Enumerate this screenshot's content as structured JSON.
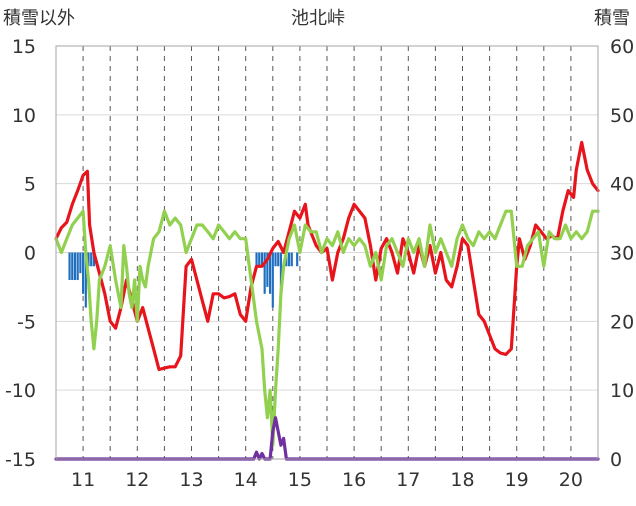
{
  "chart_data": {
    "type": "line",
    "title": "池北峠",
    "ylabel_left": "積雪以外",
    "ylabel_right": "積雪",
    "x_ticks": [
      "11",
      "12",
      "13",
      "14",
      "15",
      "16",
      "17",
      "18",
      "19",
      "20"
    ],
    "x_range": [
      10.5,
      20.5
    ],
    "y_left_ticks": [
      "15",
      "10",
      "5",
      "0",
      "-5",
      "-10",
      "-15"
    ],
    "y_left_range": [
      -15,
      15
    ],
    "y_right_ticks": [
      "60",
      "50",
      "40",
      "30",
      "20",
      "10",
      "0"
    ],
    "y_right_range": [
      0,
      60
    ],
    "grid": {
      "vertical_dashed": true,
      "horizontal_solid": true
    },
    "colors": {
      "red": "#e8141c",
      "green": "#92d050",
      "blue": "#1f6ebf",
      "purple": "#7030a0",
      "grid_h": "#d9d9d9",
      "grid_v": "#595959",
      "frame": "#a6a6a6"
    },
    "series": [
      {
        "color_key": "red",
        "axis": "left",
        "points": [
          [
            10.5,
            1.0
          ],
          [
            10.6,
            1.8
          ],
          [
            10.7,
            2.2
          ],
          [
            10.8,
            3.5
          ],
          [
            10.9,
            4.5
          ],
          [
            11.0,
            5.6
          ],
          [
            11.08,
            5.9
          ],
          [
            11.12,
            2.0
          ],
          [
            11.2,
            0.0
          ],
          [
            11.3,
            -1.5
          ],
          [
            11.4,
            -3.0
          ],
          [
            11.5,
            -5.0
          ],
          [
            11.6,
            -5.5
          ],
          [
            11.7,
            -4.0
          ],
          [
            11.8,
            -2.0
          ],
          [
            11.9,
            -3.5
          ],
          [
            12.0,
            -5.0
          ],
          [
            12.1,
            -4.0
          ],
          [
            12.2,
            -5.5
          ],
          [
            12.3,
            -7.0
          ],
          [
            12.4,
            -8.5
          ],
          [
            12.5,
            -8.4
          ],
          [
            12.6,
            -8.3
          ],
          [
            12.7,
            -8.3
          ],
          [
            12.8,
            -7.5
          ],
          [
            12.9,
            -1.0
          ],
          [
            13.0,
            -0.5
          ],
          [
            13.1,
            -2.0
          ],
          [
            13.2,
            -3.5
          ],
          [
            13.3,
            -5.0
          ],
          [
            13.4,
            -3.0
          ],
          [
            13.5,
            -3.0
          ],
          [
            13.6,
            -3.3
          ],
          [
            13.7,
            -3.2
          ],
          [
            13.8,
            -3.0
          ],
          [
            13.9,
            -4.5
          ],
          [
            14.0,
            -5.0
          ],
          [
            14.1,
            -2.5
          ],
          [
            14.2,
            -1.0
          ],
          [
            14.3,
            -1.0
          ],
          [
            14.4,
            -0.5
          ],
          [
            14.5,
            0.3
          ],
          [
            14.6,
            0.8
          ],
          [
            14.7,
            0.0
          ],
          [
            14.8,
            1.5
          ],
          [
            14.9,
            3.0
          ],
          [
            15.0,
            2.5
          ],
          [
            15.1,
            3.5
          ],
          [
            15.15,
            2.0
          ],
          [
            15.2,
            1.5
          ],
          [
            15.3,
            0.5
          ],
          [
            15.4,
            0.0
          ],
          [
            15.5,
            0.3
          ],
          [
            15.6,
            -2.0
          ],
          [
            15.7,
            0.0
          ],
          [
            15.8,
            1.0
          ],
          [
            15.9,
            2.5
          ],
          [
            16.0,
            3.5
          ],
          [
            16.1,
            3.0
          ],
          [
            16.2,
            2.5
          ],
          [
            16.3,
            0.5
          ],
          [
            16.4,
            -2.0
          ],
          [
            16.5,
            0.3
          ],
          [
            16.6,
            1.0
          ],
          [
            16.7,
            0.0
          ],
          [
            16.8,
            -1.5
          ],
          [
            16.9,
            1.0
          ],
          [
            17.0,
            0.0
          ],
          [
            17.1,
            -1.5
          ],
          [
            17.2,
            0.5
          ],
          [
            17.3,
            -1.0
          ],
          [
            17.4,
            0.5
          ],
          [
            17.5,
            -1.5
          ],
          [
            17.6,
            0.0
          ],
          [
            17.7,
            -2.0
          ],
          [
            17.8,
            -2.5
          ],
          [
            17.9,
            -1.0
          ],
          [
            18.0,
            1.0
          ],
          [
            18.1,
            0.5
          ],
          [
            18.2,
            -2.0
          ],
          [
            18.3,
            -4.5
          ],
          [
            18.4,
            -5.0
          ],
          [
            18.5,
            -6.0
          ],
          [
            18.6,
            -7.0
          ],
          [
            18.7,
            -7.3
          ],
          [
            18.8,
            -7.4
          ],
          [
            18.9,
            -7.0
          ],
          [
            19.0,
            -1.0
          ],
          [
            19.05,
            1.0
          ],
          [
            19.15,
            -0.5
          ],
          [
            19.25,
            0.5
          ],
          [
            19.35,
            2.0
          ],
          [
            19.45,
            1.5
          ],
          [
            19.55,
            1.0
          ],
          [
            19.65,
            1.2
          ],
          [
            19.75,
            1.0
          ],
          [
            19.85,
            3.0
          ],
          [
            19.95,
            4.5
          ],
          [
            20.05,
            4.0
          ],
          [
            20.1,
            6.0
          ],
          [
            20.15,
            7.0
          ],
          [
            20.2,
            8.0
          ],
          [
            20.3,
            6.0
          ],
          [
            20.4,
            5.0
          ],
          [
            20.5,
            4.5
          ]
        ]
      },
      {
        "color_key": "green",
        "axis": "left",
        "points": [
          [
            10.5,
            1.0
          ],
          [
            10.6,
            0.0
          ],
          [
            10.7,
            1.0
          ],
          [
            10.8,
            2.0
          ],
          [
            10.9,
            2.5
          ],
          [
            11.0,
            3.0
          ],
          [
            11.05,
            0.0
          ],
          [
            11.1,
            -2.0
          ],
          [
            11.15,
            -5.0
          ],
          [
            11.2,
            -7.0
          ],
          [
            11.25,
            -5.0
          ],
          [
            11.3,
            -2.0
          ],
          [
            11.4,
            -1.0
          ],
          [
            11.5,
            0.5
          ],
          [
            11.6,
            -2.0
          ],
          [
            11.7,
            -4.0
          ],
          [
            11.75,
            0.5
          ],
          [
            11.8,
            -1.0
          ],
          [
            11.85,
            -3.0
          ],
          [
            11.9,
            -4.0
          ],
          [
            11.95,
            -2.0
          ],
          [
            12.0,
            -5.0
          ],
          [
            12.05,
            -1.0
          ],
          [
            12.1,
            -2.0
          ],
          [
            12.15,
            -2.5
          ],
          [
            12.2,
            -1.0
          ],
          [
            12.3,
            1.0
          ],
          [
            12.4,
            1.5
          ],
          [
            12.5,
            3.0
          ],
          [
            12.6,
            2.0
          ],
          [
            12.7,
            2.5
          ],
          [
            12.8,
            2.0
          ],
          [
            12.9,
            0.0
          ],
          [
            13.0,
            1.0
          ],
          [
            13.1,
            2.0
          ],
          [
            13.2,
            2.0
          ],
          [
            13.3,
            1.5
          ],
          [
            13.4,
            1.0
          ],
          [
            13.5,
            2.0
          ],
          [
            13.6,
            1.5
          ],
          [
            13.7,
            1.0
          ],
          [
            13.8,
            1.5
          ],
          [
            13.9,
            1.0
          ],
          [
            14.0,
            1.0
          ],
          [
            14.1,
            -2.0
          ],
          [
            14.2,
            -5.0
          ],
          [
            14.3,
            -7.0
          ],
          [
            14.35,
            -10.0
          ],
          [
            14.4,
            -12.0
          ],
          [
            14.45,
            -10.0
          ],
          [
            14.5,
            -14.0
          ],
          [
            14.55,
            -10.0
          ],
          [
            14.6,
            -7.0
          ],
          [
            14.65,
            -3.0
          ],
          [
            14.7,
            -1.0
          ],
          [
            14.8,
            1.0
          ],
          [
            14.9,
            2.0
          ],
          [
            15.0,
            0.0
          ],
          [
            15.1,
            2.0
          ],
          [
            15.2,
            1.5
          ],
          [
            15.3,
            1.5
          ],
          [
            15.4,
            0.0
          ],
          [
            15.5,
            1.0
          ],
          [
            15.6,
            0.5
          ],
          [
            15.7,
            1.5
          ],
          [
            15.8,
            0.0
          ],
          [
            15.9,
            1.0
          ],
          [
            16.0,
            0.5
          ],
          [
            16.1,
            1.0
          ],
          [
            16.2,
            0.5
          ],
          [
            16.3,
            -1.0
          ],
          [
            16.4,
            0.0
          ],
          [
            16.5,
            -2.0
          ],
          [
            16.6,
            0.5
          ],
          [
            16.7,
            1.0
          ],
          [
            16.8,
            0.0
          ],
          [
            16.9,
            -1.0
          ],
          [
            17.0,
            1.0
          ],
          [
            17.1,
            0.0
          ],
          [
            17.2,
            1.0
          ],
          [
            17.3,
            -1.0
          ],
          [
            17.4,
            2.0
          ],
          [
            17.5,
            0.0
          ],
          [
            17.6,
            1.0
          ],
          [
            17.7,
            0.0
          ],
          [
            17.8,
            -1.0
          ],
          [
            17.9,
            1.0
          ],
          [
            18.0,
            2.0
          ],
          [
            18.1,
            1.0
          ],
          [
            18.2,
            0.5
          ],
          [
            18.3,
            1.5
          ],
          [
            18.4,
            1.0
          ],
          [
            18.5,
            1.5
          ],
          [
            18.6,
            1.0
          ],
          [
            18.7,
            2.0
          ],
          [
            18.8,
            3.0
          ],
          [
            18.9,
            3.0
          ],
          [
            19.0,
            -1.0
          ],
          [
            19.1,
            -1.0
          ],
          [
            19.2,
            0.5
          ],
          [
            19.3,
            1.0
          ],
          [
            19.4,
            1.5
          ],
          [
            19.5,
            -1.0
          ],
          [
            19.6,
            1.5
          ],
          [
            19.7,
            1.0
          ],
          [
            19.8,
            1.0
          ],
          [
            19.9,
            2.0
          ],
          [
            20.0,
            1.0
          ],
          [
            20.1,
            1.5
          ],
          [
            20.2,
            1.0
          ],
          [
            20.3,
            1.5
          ],
          [
            20.4,
            3.0
          ],
          [
            20.5,
            3.0
          ]
        ]
      },
      {
        "color_key": "purple",
        "axis": "left",
        "points": [
          [
            10.5,
            -15.0
          ],
          [
            14.15,
            -15.0
          ],
          [
            14.2,
            -14.5
          ],
          [
            14.25,
            -15.0
          ],
          [
            14.3,
            -14.6
          ],
          [
            14.35,
            -15.0
          ],
          [
            14.45,
            -15.0
          ],
          [
            14.5,
            -13.0
          ],
          [
            14.55,
            -12.0
          ],
          [
            14.6,
            -13.0
          ],
          [
            14.65,
            -14.0
          ],
          [
            14.7,
            -13.5
          ],
          [
            14.75,
            -15.0
          ],
          [
            20.5,
            -15.0
          ]
        ]
      }
    ],
    "bars": {
      "color_key": "blue",
      "axis": "left",
      "points": [
        [
          10.75,
          -2.0
        ],
        [
          10.8,
          -2.0
        ],
        [
          10.85,
          -2.0
        ],
        [
          10.9,
          -2.0
        ],
        [
          10.95,
          -1.5
        ],
        [
          11.0,
          -3.0
        ],
        [
          11.05,
          -4.0
        ],
        [
          11.1,
          -1.0
        ],
        [
          11.15,
          -1.0
        ],
        [
          11.2,
          -1.0
        ],
        [
          14.2,
          -1.0
        ],
        [
          14.25,
          -1.0
        ],
        [
          14.3,
          -1.0
        ],
        [
          14.35,
          -3.0
        ],
        [
          14.4,
          -2.5
        ],
        [
          14.45,
          -3.0
        ],
        [
          14.5,
          -4.0
        ],
        [
          14.55,
          -1.0
        ],
        [
          14.6,
          -1.0
        ],
        [
          14.65,
          -3.0
        ],
        [
          14.75,
          -1.0
        ],
        [
          14.8,
          -1.0
        ],
        [
          14.85,
          -1.0
        ],
        [
          14.95,
          -1.0
        ]
      ]
    }
  }
}
